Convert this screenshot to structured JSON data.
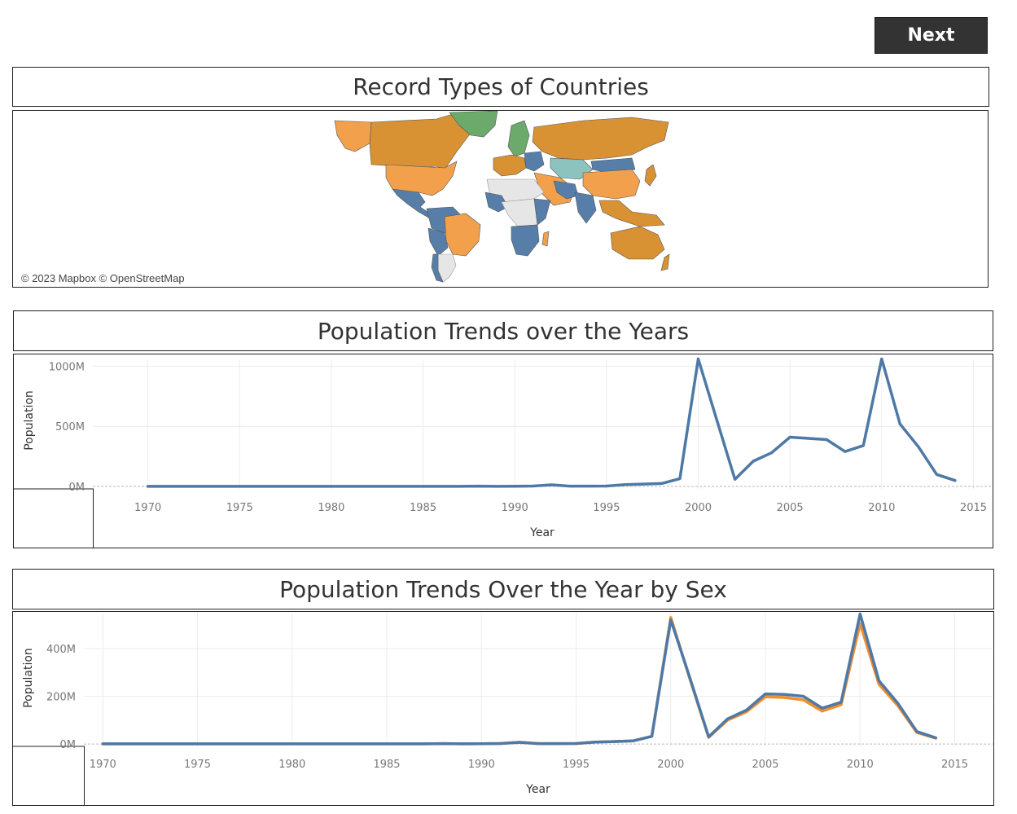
{
  "nav": {
    "next_label": "Next"
  },
  "map_panel": {
    "title": "Record Types of Countries",
    "credit": "© 2023 Mapbox © OpenStreetMap",
    "colors": {
      "orange_dark": "#D89234",
      "orange_light": "#F2A04C",
      "blue": "#577EA8",
      "teal": "#8CC3BE",
      "green": "#6BAA6A",
      "grey": "#E6E6E6"
    }
  },
  "chart_titles": [
    "Population Trends over the Years",
    "Population Trends Over the Year by Sex"
  ],
  "chart_data": [
    {
      "type": "line",
      "title": "Population Trends over the Years",
      "xlabel": "Year",
      "ylabel": "Population",
      "xlim": [
        1967,
        2016
      ],
      "ylim": [
        -20,
        1050
      ],
      "xticks": [
        1970,
        1975,
        1980,
        1985,
        1990,
        1995,
        2000,
        2005,
        2010,
        2015
      ],
      "yticks": [
        {
          "value": 0,
          "label": "0M"
        },
        {
          "value": 500,
          "label": "500M"
        },
        {
          "value": 1000,
          "label": "1000M"
        }
      ],
      "grid": true,
      "series": [
        {
          "color": "#4E79A7",
          "x": [
            1970,
            1971,
            1972,
            1973,
            1974,
            1975,
            1976,
            1977,
            1978,
            1979,
            1980,
            1981,
            1982,
            1983,
            1984,
            1985,
            1986,
            1987,
            1988,
            1989,
            1990,
            1991,
            1992,
            1993,
            1994,
            1995,
            1996,
            1997,
            1998,
            1999,
            2000,
            2001,
            2002,
            2003,
            2004,
            2005,
            2006,
            2007,
            2008,
            2009,
            2010,
            2011,
            2012,
            2013,
            2014
          ],
          "y": [
            1,
            1,
            1,
            1,
            1,
            1,
            1,
            1,
            1,
            1,
            1,
            1,
            1,
            1,
            1,
            1,
            1,
            1,
            3,
            1,
            2,
            4,
            14,
            3,
            3,
            4,
            15,
            20,
            25,
            65,
            1060,
            560,
            60,
            210,
            280,
            410,
            400,
            390,
            290,
            340,
            1060,
            520,
            330,
            100,
            50
          ]
        }
      ]
    },
    {
      "type": "line",
      "title": "Population Trends Over the Year by Sex",
      "xlabel": "Year",
      "ylabel": "Population",
      "xlim": [
        1969,
        2017
      ],
      "ylim": [
        -10,
        550
      ],
      "xticks": [
        1970,
        1975,
        1980,
        1985,
        1990,
        1995,
        2000,
        2005,
        2010,
        2015
      ],
      "yticks": [
        {
          "value": 0,
          "label": "0M"
        },
        {
          "value": 200,
          "label": "200M"
        },
        {
          "value": 400,
          "label": "400M"
        }
      ],
      "grid": true,
      "series": [
        {
          "color": "#F28E2B",
          "x": [
            1970,
            1971,
            1972,
            1973,
            1974,
            1975,
            1976,
            1977,
            1978,
            1979,
            1980,
            1981,
            1982,
            1983,
            1984,
            1985,
            1986,
            1987,
            1988,
            1989,
            1990,
            1991,
            1992,
            1993,
            1994,
            1995,
            1996,
            1997,
            1998,
            1999,
            2000,
            2001,
            2002,
            2003,
            2004,
            2005,
            2006,
            2007,
            2008,
            2009,
            2010,
            2011,
            2012,
            2013,
            2014
          ],
          "y": [
            0.5,
            0.5,
            0.5,
            0.5,
            0.5,
            0.5,
            0.5,
            0.5,
            0.5,
            0.5,
            0.5,
            0.5,
            0.5,
            0.5,
            0.5,
            0.5,
            0.5,
            0.5,
            1.5,
            0.5,
            1,
            2,
            7,
            1.5,
            1.5,
            2,
            8,
            10,
            13,
            32,
            530,
            275,
            28,
            100,
            135,
            198,
            195,
            185,
            138,
            165,
            505,
            250,
            160,
            48,
            24
          ]
        },
        {
          "color": "#4E79A7",
          "x": [
            1970,
            1971,
            1972,
            1973,
            1974,
            1975,
            1976,
            1977,
            1978,
            1979,
            1980,
            1981,
            1982,
            1983,
            1984,
            1985,
            1986,
            1987,
            1988,
            1989,
            1990,
            1991,
            1992,
            1993,
            1994,
            1995,
            1996,
            1997,
            1998,
            1999,
            2000,
            2001,
            2002,
            2003,
            2004,
            2005,
            2006,
            2007,
            2008,
            2009,
            2010,
            2011,
            2012,
            2013,
            2014
          ],
          "y": [
            0.5,
            0.5,
            0.5,
            0.5,
            0.5,
            0.5,
            0.5,
            0.5,
            0.5,
            0.5,
            0.5,
            0.5,
            0.5,
            0.5,
            0.5,
            0.5,
            0.5,
            0.5,
            1.5,
            0.5,
            1,
            2,
            7,
            1.5,
            1.5,
            2,
            8,
            10,
            13,
            32,
            520,
            280,
            30,
            105,
            142,
            210,
            208,
            200,
            150,
            175,
            545,
            265,
            170,
            52,
            26
          ]
        }
      ]
    }
  ]
}
